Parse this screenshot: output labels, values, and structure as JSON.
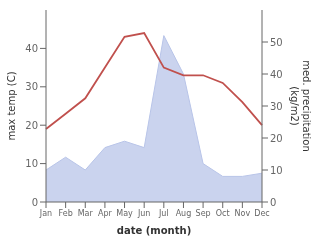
{
  "chart_data": {
    "type": "line",
    "xlabel": "date (month)",
    "ylabel": "max temp (C)",
    "y2label": "med. precipitation\n(kg/m2)",
    "categories": [
      "Jan",
      "Feb",
      "Mar",
      "Apr",
      "May",
      "Jun",
      "Jul",
      "Aug",
      "Sep",
      "Oct",
      "Nov",
      "Dec"
    ],
    "series": [
      {
        "type": "area",
        "axis": "y2",
        "color": "#b8c4e8",
        "values": [
          10,
          14,
          10,
          17,
          19,
          17,
          52,
          40,
          12,
          8,
          8,
          9
        ]
      },
      {
        "type": "line",
        "color": "#c0504d",
        "values": [
          19,
          23,
          27,
          35,
          43,
          44,
          35,
          33,
          33,
          31,
          26,
          20
        ]
      }
    ],
    "ylim": [
      0,
      50
    ],
    "yticks": [
      0,
      10,
      20,
      30,
      40
    ],
    "y2lim": [
      0,
      60
    ],
    "y2ticks": [
      0,
      10,
      20,
      30,
      40,
      50
    ],
    "grid": false
  }
}
